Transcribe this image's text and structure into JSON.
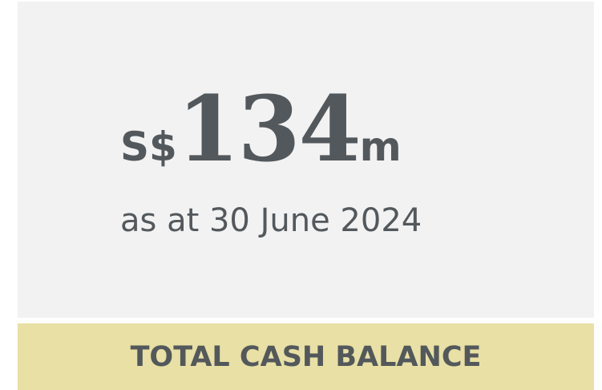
{
  "value": {
    "prefix": "S$",
    "amount": 134,
    "suffix": "m"
  },
  "date": "as at 30 June 2024",
  "label": "TOTAL CASH BALANCE"
}
